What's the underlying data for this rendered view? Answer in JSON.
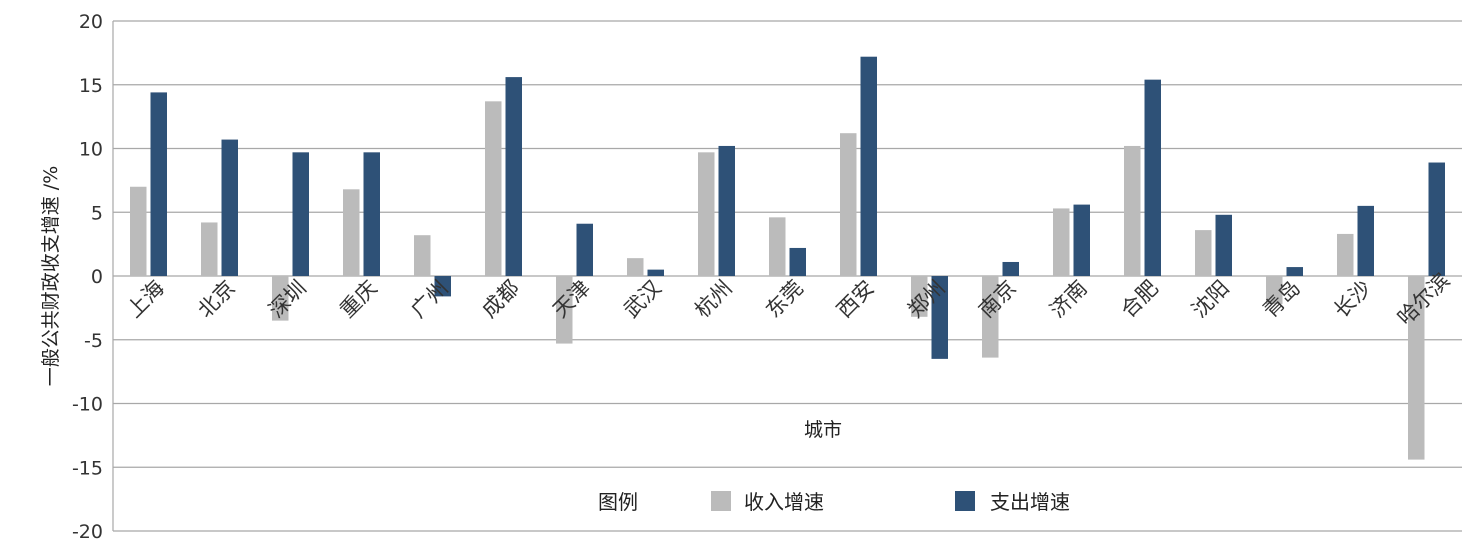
{
  "chart_data": {
    "type": "bar",
    "title": "",
    "xlabel": "城市",
    "ylabel": "一般公共财政收支增速 /%",
    "ylim": [
      -20,
      20
    ],
    "yticks": [
      -20,
      -15,
      -10,
      -5,
      0,
      5,
      10,
      15,
      20
    ],
    "grid": true,
    "legend_position": "bottom-center",
    "legend_title": "图例",
    "categories": [
      "上海",
      "北京",
      "深圳",
      "重庆",
      "广州",
      "成都",
      "天津",
      "武汉",
      "杭州",
      "东莞",
      "西安",
      "郑州",
      "南京",
      "济南",
      "合肥",
      "沈阳",
      "青岛",
      "长沙",
      "哈尔滨"
    ],
    "series": [
      {
        "name": "收入增速",
        "color": "#bbbbbb",
        "values": [
          7.0,
          4.2,
          -3.5,
          6.8,
          3.2,
          13.7,
          -5.3,
          1.4,
          9.7,
          4.6,
          11.2,
          -3.2,
          -6.4,
          5.3,
          10.2,
          3.6,
          -2.2,
          3.3,
          -14.4
        ]
      },
      {
        "name": "支出增速",
        "color": "#2e5177",
        "values": [
          14.4,
          10.7,
          9.7,
          9.7,
          -1.6,
          15.6,
          4.1,
          0.5,
          10.2,
          2.2,
          17.2,
          -6.5,
          1.1,
          5.6,
          15.4,
          4.8,
          0.7,
          5.5,
          8.9
        ]
      }
    ]
  }
}
